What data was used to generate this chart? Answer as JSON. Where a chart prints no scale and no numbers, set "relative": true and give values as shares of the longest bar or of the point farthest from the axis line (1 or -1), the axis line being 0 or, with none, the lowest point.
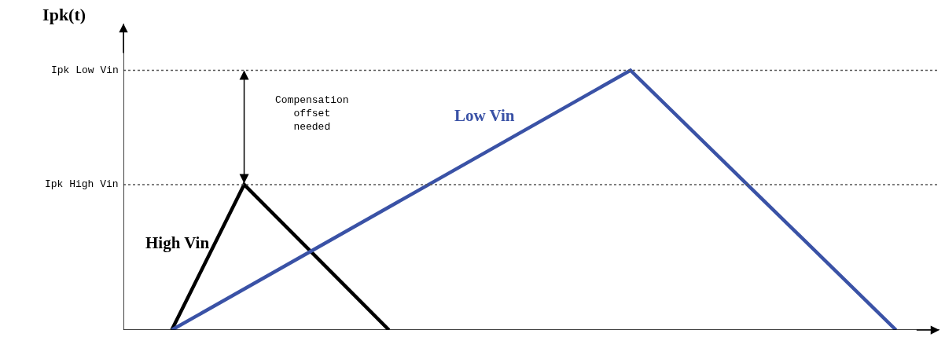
{
  "chart_data": {
    "type": "line",
    "title": "Ipk(t)",
    "relative": true,
    "legend": false,
    "marker": "none",
    "line_style": "solid",
    "categories": [
      null,
      null,
      null,
      null,
      null,
      null,
      null,
      null,
      null,
      null,
      null,
      null,
      null,
      null,
      null,
      null,
      null,
      null,
      null,
      null,
      null,
      null,
      null,
      null,
      null,
      null,
      null,
      null,
      null,
      null,
      null
    ],
    "series": [
      {
        "name": "High Vin",
        "color": "#000000",
        "values": [
          0,
          null,
          null,
          0.56,
          null,
          null,
          null,
          null,
          null,
          0,
          null,
          null,
          null,
          null,
          null,
          null,
          null,
          null,
          null,
          null,
          null,
          null,
          null,
          null,
          null,
          null,
          null,
          null,
          null,
          null,
          null
        ]
      },
      {
        "name": "Low Vin",
        "color": "#3a52a6",
        "values": [
          0,
          null,
          null,
          null,
          null,
          null,
          null,
          null,
          null,
          null,
          null,
          null,
          null,
          null,
          null,
          null,
          null,
          null,
          null,
          1,
          null,
          null,
          null,
          null,
          null,
          null,
          null,
          null,
          null,
          null,
          0
        ]
      }
    ],
    "ref_lines": [
      {
        "axis": "y",
        "value": 1,
        "label": "Ipk Low Vin",
        "color": "#555555",
        "line_style": "dotted"
      },
      {
        "axis": "y",
        "value": 0.56,
        "label": "Ipk High Vin",
        "color": "#555555",
        "line_style": "dotted"
      }
    ],
    "annotations": [
      "Compensation\noffset\nneeded"
    ]
  }
}
